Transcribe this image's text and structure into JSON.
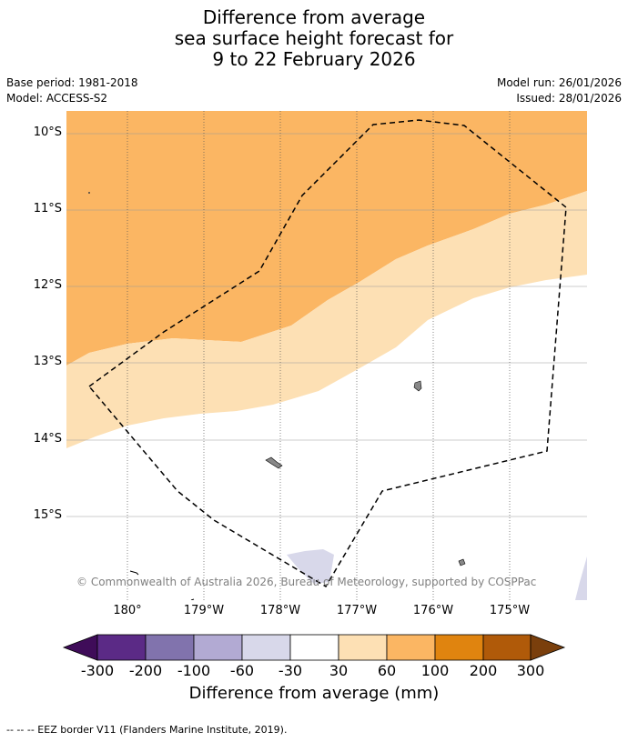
{
  "title": {
    "line1": "Difference from average",
    "line2": "sea surface height forecast for",
    "line3": "9 to 22 February 2026"
  },
  "meta": {
    "base_period": "Base period: 1981-2018",
    "model": "Model: ACCESS-S2",
    "model_run": "Model run: 26/01/2026",
    "issued": "Issued: 28/01/2026"
  },
  "axes": {
    "latitudes": [
      "10°S",
      "11°S",
      "12°S",
      "13°S",
      "14°S",
      "15°S"
    ],
    "longitudes": [
      "180°",
      "179°W",
      "178°W",
      "177°W",
      "176°W",
      "175°W"
    ]
  },
  "copyright": "© Commonwealth of Australia 2026, Bureau of Meteorology, supported by COSPPac",
  "colorbar": {
    "ticks": [
      "-300",
      "-200",
      "-100",
      "-60",
      "-30",
      "30",
      "60",
      "100",
      "200",
      "300"
    ],
    "colors": [
      "#3f0c59",
      "#5b2a86",
      "#8173ad",
      "#b2aad3",
      "#d8d8ea",
      "#ffffff",
      "#fde0b4",
      "#fbb663",
      "#e0840f",
      "#b05a09",
      "#7a3f0c"
    ],
    "label": "Difference from average (mm)"
  },
  "footer": "--  --  -- EEZ border V11 (Flanders Marine Institute, 2019)."
}
